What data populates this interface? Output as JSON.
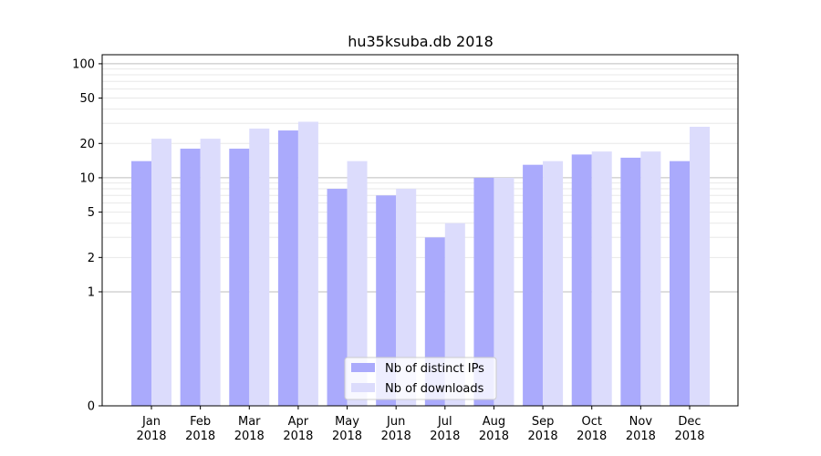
{
  "chart_data": {
    "type": "bar",
    "title": "hu35ksuba.db 2018",
    "xlabel": "",
    "ylabel": "",
    "yscale": "symlog",
    "ylim": [
      0,
      120
    ],
    "yticks": [
      0,
      1,
      2,
      5,
      10,
      20,
      50,
      100
    ],
    "ytick_labels": [
      "0",
      "1",
      "2",
      "5",
      "10",
      "20",
      "50",
      "100"
    ],
    "grid": "horizontal",
    "legend_position": "bottom-center",
    "categories": [
      [
        "Jan",
        "2018"
      ],
      [
        "Feb",
        "2018"
      ],
      [
        "Mar",
        "2018"
      ],
      [
        "Apr",
        "2018"
      ],
      [
        "May",
        "2018"
      ],
      [
        "Jun",
        "2018"
      ],
      [
        "Jul",
        "2018"
      ],
      [
        "Aug",
        "2018"
      ],
      [
        "Sep",
        "2018"
      ],
      [
        "Oct",
        "2018"
      ],
      [
        "Nov",
        "2018"
      ],
      [
        "Dec",
        "2018"
      ]
    ],
    "series": [
      {
        "name": "Nb of distinct IPs",
        "color": "#aaaafc",
        "values": [
          14,
          18,
          18,
          26,
          8,
          7,
          3,
          10,
          13,
          16,
          15,
          14
        ]
      },
      {
        "name": "Nb of downloads",
        "color": "#dcdcfc",
        "values": [
          22,
          22,
          27,
          31,
          14,
          8,
          4,
          10,
          14,
          17,
          17,
          28
        ]
      }
    ]
  }
}
